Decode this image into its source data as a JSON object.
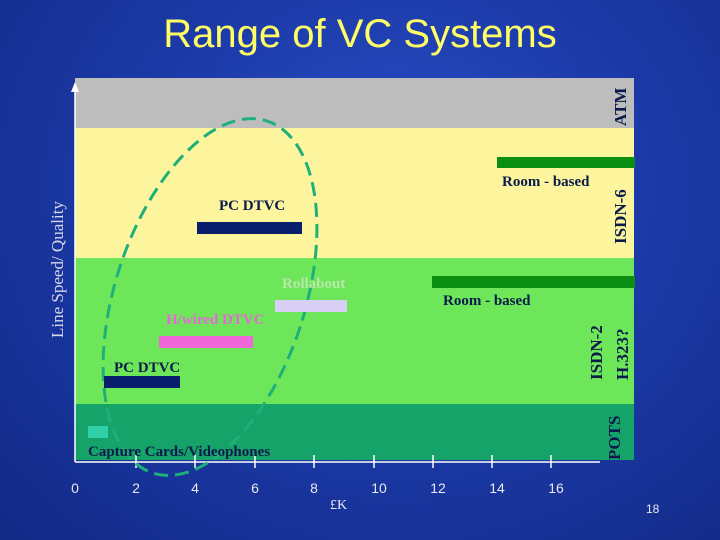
{
  "title": "Range of VC Systems",
  "y_axis_label": "Line Speed/ Quality",
  "x_axis_unit": "£K",
  "x_ticks": [
    "0",
    "2",
    "4",
    "6",
    "8",
    "10",
    "12",
    "14",
    "16"
  ],
  "bands": [
    {
      "label": "ATM"
    },
    {
      "label": "ISDN-6"
    },
    {
      "label": "ISDN-2 H.323?"
    },
    {
      "label": "POTS"
    }
  ],
  "bars": {
    "room_based_isdn6": {
      "label": "Room - based",
      "color": "#0b8f12"
    },
    "pc_dtvc_isdn6": {
      "label": "PC DTVC",
      "color": "#0a1e6e"
    },
    "rollabout": {
      "label": "Rollabout",
      "color": "#d8d0f4"
    },
    "room_based_isdn2": {
      "label": "Room - based",
      "color": "#0b8f12"
    },
    "hwired_dtvc": {
      "label": "H/wired DTVC",
      "color": "#f068d8"
    },
    "pc_dtvc_isdn2": {
      "label": "PC DTVC",
      "color": "#0a1e6e"
    },
    "capture_cards": {
      "label": "Capture Cards/Videophones",
      "color": "#2fd0a8"
    }
  },
  "ellipse_color": "#1fb07a",
  "page_number": "18"
}
